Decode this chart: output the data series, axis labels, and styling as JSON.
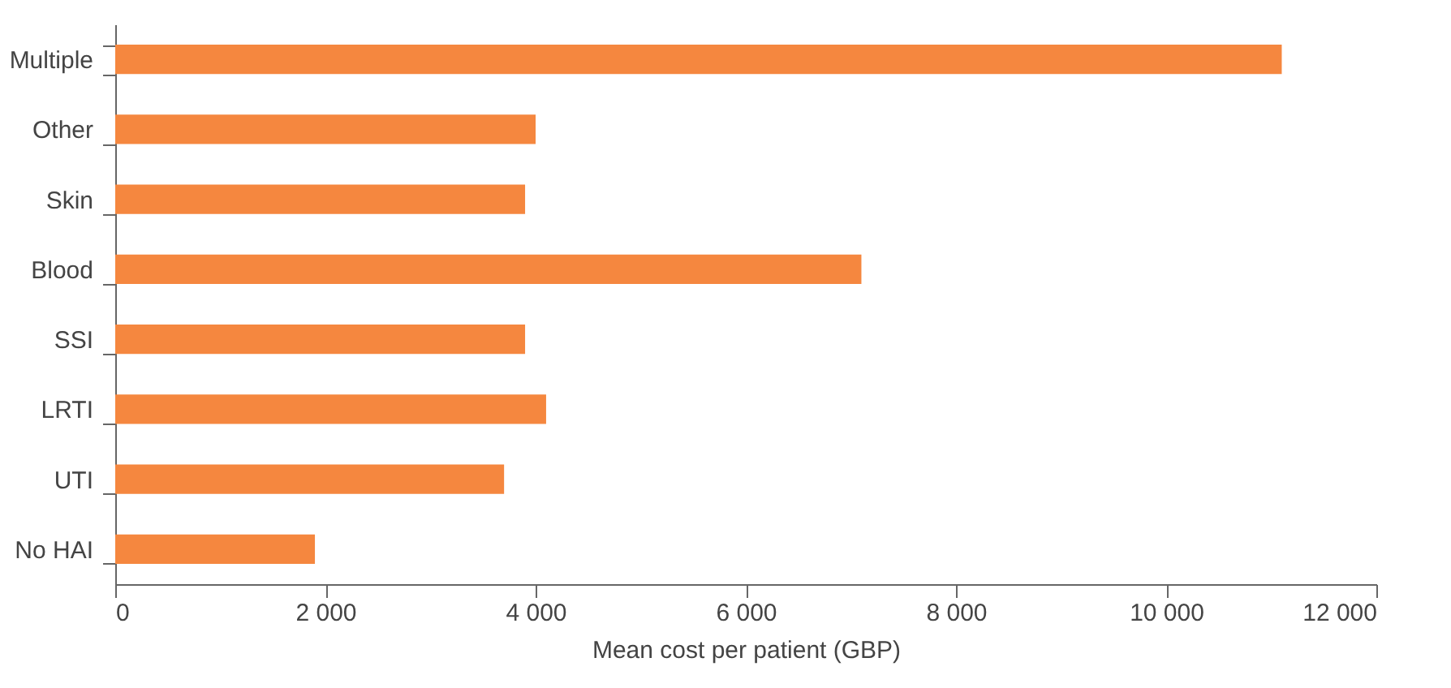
{
  "chart_data": {
    "type": "bar",
    "orientation": "horizontal",
    "categories": [
      "Multiple",
      "Other",
      "Skin",
      "Blood",
      "SSI",
      "LRTI",
      "UTI",
      "No HAI"
    ],
    "values": [
      11100,
      4000,
      3900,
      7100,
      3900,
      4100,
      3700,
      1900
    ],
    "color": "#f5873f",
    "xlabel": "Mean cost per patient (GBP)",
    "xlim": [
      0,
      12000
    ],
    "xticks": [
      0,
      {
        "value": 2000,
        "label": "2 000"
      },
      {
        "value": 4000,
        "label": "4 000"
      },
      {
        "value": 6000,
        "label": "6 000"
      },
      {
        "value": 8000,
        "label": "8 000"
      },
      {
        "value": 10000,
        "label": "10 000"
      },
      {
        "value": 12000,
        "label": "12 000"
      }
    ],
    "grid": false
  }
}
